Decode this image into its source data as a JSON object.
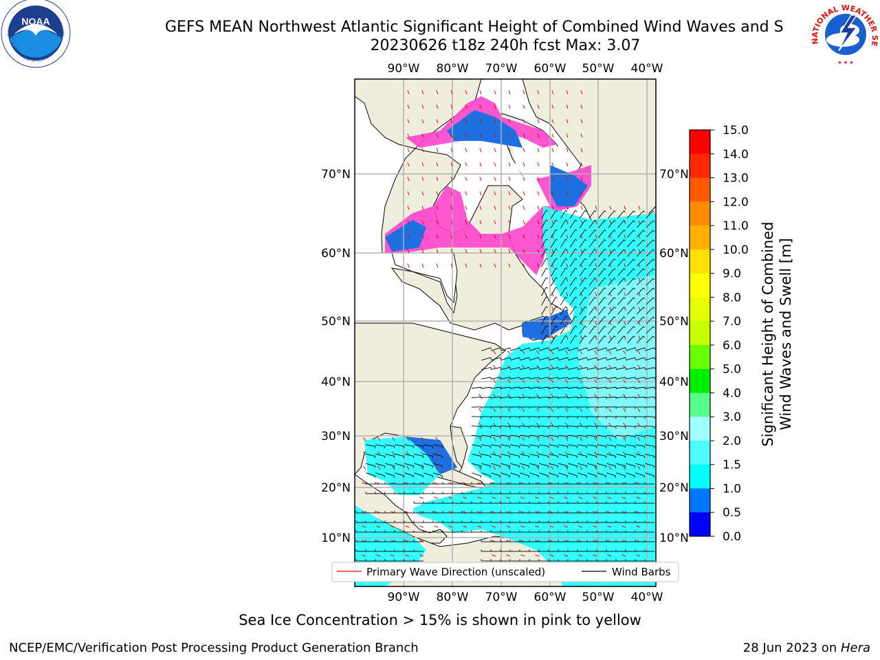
{
  "header": {
    "title": "GEFS MEAN Northwest Atlantic Significant Height of Combined Wind Waves and S",
    "subtitle": "20230626 t18z 240h fcst   Max: 3.07"
  },
  "map": {
    "lon_labels": [
      "90°W",
      "80°W",
      "70°W",
      "60°W",
      "50°W",
      "40°W"
    ],
    "lat_labels": [
      "70°N",
      "60°N",
      "50°N",
      "40°N",
      "30°N",
      "20°N",
      "10°N"
    ],
    "colors": {
      "land": "#efeddc",
      "ice_white": "#ffffff",
      "ice_pink": "#ff44cc",
      "ice_orange": "#ffaa55",
      "wave_cyan": "#33ffff",
      "wave_light": "#8ff8f8",
      "wave_blue": "#1e6fe0",
      "grid": "#b0b0b0",
      "arrow": "#e00000",
      "barb": "#000000"
    }
  },
  "legend": {
    "items": [
      {
        "label": "Primary Wave Direction (unscaled)",
        "color": "#e00000"
      },
      {
        "label": "Wind Barbs",
        "color": "#000000"
      }
    ]
  },
  "colorbar": {
    "label_line1": "Significant Height of Combined",
    "label_line2": "Wind Waves and Swell [m]",
    "ticks": [
      "15.0",
      "14.0",
      "13.0",
      "12.0",
      "11.0",
      "10.0",
      "9.0",
      "8.0",
      "7.0",
      "6.0",
      "5.0",
      "4.0",
      "3.0",
      "2.0",
      "1.5",
      "1.0",
      "0.5",
      "0.0"
    ],
    "colors": [
      "#ff0000",
      "#ff2800",
      "#ff5a00",
      "#ff8c00",
      "#ffb000",
      "#ffe000",
      "#ffff00",
      "#e6ff00",
      "#c8ff00",
      "#6aff00",
      "#00ee00",
      "#55ff88",
      "#a0ffff",
      "#4dfcfc",
      "#00ffff",
      "#0077ff",
      "#0000ff"
    ]
  },
  "logos": {
    "left_text": "NOAA",
    "left_ring_text": "NATIONAL OCEANIC AND ATMOSPHERIC ADMINISTRATION",
    "left_ring_bottom": "U.S. DEPARTMENT OF COMMERCE",
    "right_ring_text": "NATIONAL WEATHER SERVICE"
  },
  "caption": "Sea Ice Concentration > 15% is shown in pink to yellow",
  "footer": {
    "left": "NCEP/EMC/Verification Post Processing Product Generation Branch",
    "right_date": "28 Jun 2023 on ",
    "right_host": "Hera"
  }
}
